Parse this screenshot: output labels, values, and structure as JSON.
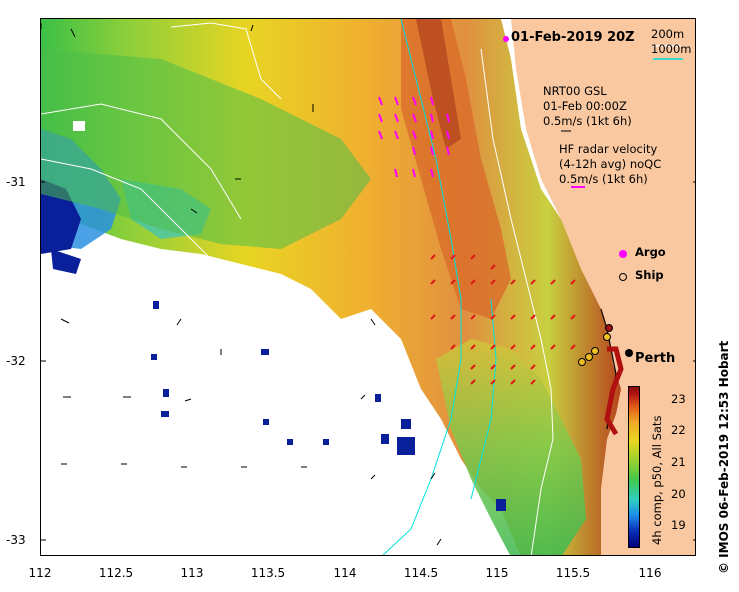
{
  "title": "01-Feb-2019 20Z",
  "depth_legend": {
    "c200": "200m",
    "c1000": "1000m"
  },
  "model_note": {
    "line1": "NRT00 GSL",
    "line2": "01-Feb 00:00Z",
    "line3": "0.5m/s (1kt 6h)"
  },
  "radar_note": {
    "line1": "HF radar velocity",
    "line2": "(4-12h avg) noQC",
    "line3": "0.5m/s (1kt 6h)"
  },
  "symbols": {
    "argo": "Argo",
    "ship": "Ship"
  },
  "city": "Perth",
  "axes": {
    "x_ticks": [
      "112",
      "112.5",
      "113",
      "113.5",
      "114",
      "114.5",
      "115",
      "115.5",
      "116"
    ],
    "y_ticks": [
      "-31",
      "-32",
      "-33"
    ],
    "x_range": [
      112,
      116.3
    ],
    "y_range": [
      -33.1,
      -30.1
    ]
  },
  "colorbar": {
    "ticks": [
      "23",
      "22",
      "21",
      "20",
      "19"
    ],
    "range": [
      18.5,
      23.5
    ],
    "title": "4h comp, p50, All Sats"
  },
  "credit": "© IMOS 06-Feb-2019 12:53 Hobart",
  "colors": {
    "land": "#f9c8a0",
    "radar_vectors": "#ff00ff",
    "radar_arrows": "#e01818",
    "contour_200m": "#ffffff",
    "contour_1000m": "#00e0e0",
    "nodata": "#ffffff"
  }
}
